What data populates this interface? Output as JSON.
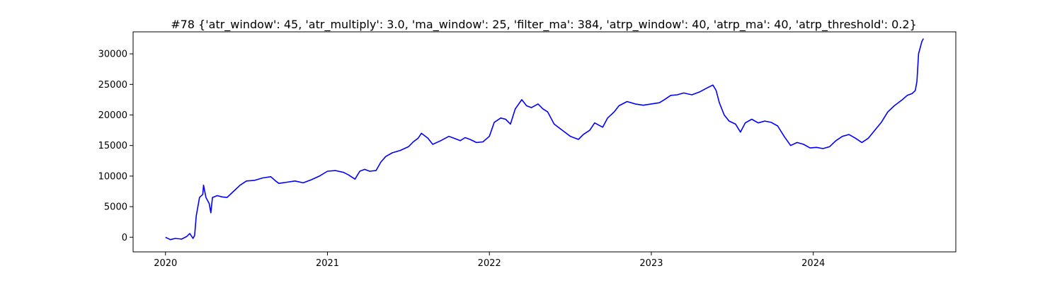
{
  "chart_data": {
    "type": "line",
    "title": "#78 {'atr_window': 45, 'atr_multiply': 3.0, 'ma_window': 25, 'filter_ma': 384, 'atrp_window': 40, 'atrp_ma': 40, 'atrp_threshold': 0.2}",
    "xlabel": "",
    "ylabel": "",
    "xlim": [
      2019.8,
      2024.88
    ],
    "ylim": [
      -2400,
      33600
    ],
    "x_ticks": [
      2020,
      2021,
      2022,
      2023,
      2024
    ],
    "x_tick_labels": [
      "2020",
      "2021",
      "2022",
      "2023",
      "2024"
    ],
    "y_ticks": [
      0,
      5000,
      10000,
      15000,
      20000,
      25000,
      30000
    ],
    "y_tick_labels": [
      "0",
      "5000",
      "10000",
      "15000",
      "20000",
      "25000",
      "30000"
    ],
    "grid": false,
    "legend": "none",
    "series": [
      {
        "color": "#0000ff",
        "points": [
          [
            2020.0,
            0
          ],
          [
            2020.03,
            -400
          ],
          [
            2020.06,
            -200
          ],
          [
            2020.1,
            -300
          ],
          [
            2020.13,
            100
          ],
          [
            2020.15,
            600
          ],
          [
            2020.17,
            -200
          ],
          [
            2020.18,
            300
          ],
          [
            2020.19,
            3500
          ],
          [
            2020.2,
            5000
          ],
          [
            2020.21,
            6500
          ],
          [
            2020.23,
            7000
          ],
          [
            2020.235,
            8500
          ],
          [
            2020.25,
            6500
          ],
          [
            2020.27,
            5500
          ],
          [
            2020.28,
            4000
          ],
          [
            2020.29,
            6500
          ],
          [
            2020.32,
            6800
          ],
          [
            2020.35,
            6600
          ],
          [
            2020.38,
            6500
          ],
          [
            2020.42,
            7500
          ],
          [
            2020.46,
            8500
          ],
          [
            2020.5,
            9200
          ],
          [
            2020.55,
            9300
          ],
          [
            2020.6,
            9700
          ],
          [
            2020.65,
            9900
          ],
          [
            2020.68,
            9200
          ],
          [
            2020.7,
            8800
          ],
          [
            2020.75,
            9000
          ],
          [
            2020.8,
            9200
          ],
          [
            2020.85,
            8900
          ],
          [
            2020.9,
            9400
          ],
          [
            2020.95,
            10000
          ],
          [
            2021.0,
            10800
          ],
          [
            2021.05,
            10900
          ],
          [
            2021.1,
            10600
          ],
          [
            2021.13,
            10200
          ],
          [
            2021.17,
            9500
          ],
          [
            2021.2,
            10800
          ],
          [
            2021.23,
            11100
          ],
          [
            2021.26,
            10800
          ],
          [
            2021.3,
            10900
          ],
          [
            2021.33,
            12300
          ],
          [
            2021.36,
            13200
          ],
          [
            2021.4,
            13800
          ],
          [
            2021.45,
            14200
          ],
          [
            2021.5,
            14800
          ],
          [
            2021.53,
            15600
          ],
          [
            2021.56,
            16200
          ],
          [
            2021.58,
            17000
          ],
          [
            2021.62,
            16200
          ],
          [
            2021.65,
            15200
          ],
          [
            2021.7,
            15800
          ],
          [
            2021.75,
            16500
          ],
          [
            2021.78,
            16200
          ],
          [
            2021.82,
            15800
          ],
          [
            2021.85,
            16300
          ],
          [
            2021.88,
            16000
          ],
          [
            2021.92,
            15500
          ],
          [
            2021.96,
            15600
          ],
          [
            2022.0,
            16500
          ],
          [
            2022.03,
            18800
          ],
          [
            2022.07,
            19500
          ],
          [
            2022.1,
            19300
          ],
          [
            2022.13,
            18500
          ],
          [
            2022.16,
            21000
          ],
          [
            2022.2,
            22500
          ],
          [
            2022.23,
            21500
          ],
          [
            2022.26,
            21200
          ],
          [
            2022.3,
            21800
          ],
          [
            2022.33,
            21000
          ],
          [
            2022.36,
            20500
          ],
          [
            2022.4,
            18500
          ],
          [
            2022.45,
            17500
          ],
          [
            2022.5,
            16500
          ],
          [
            2022.55,
            16000
          ],
          [
            2022.58,
            16800
          ],
          [
            2022.62,
            17500
          ],
          [
            2022.65,
            18700
          ],
          [
            2022.7,
            18000
          ],
          [
            2022.73,
            19500
          ],
          [
            2022.77,
            20500
          ],
          [
            2022.8,
            21500
          ],
          [
            2022.85,
            22200
          ],
          [
            2022.9,
            21800
          ],
          [
            2022.95,
            21600
          ],
          [
            2023.0,
            21800
          ],
          [
            2023.05,
            22000
          ],
          [
            2023.08,
            22500
          ],
          [
            2023.12,
            23200
          ],
          [
            2023.16,
            23300
          ],
          [
            2023.2,
            23600
          ],
          [
            2023.25,
            23300
          ],
          [
            2023.3,
            23800
          ],
          [
            2023.35,
            24500
          ],
          [
            2023.38,
            24900
          ],
          [
            2023.4,
            24000
          ],
          [
            2023.42,
            22000
          ],
          [
            2023.45,
            20000
          ],
          [
            2023.48,
            19000
          ],
          [
            2023.52,
            18500
          ],
          [
            2023.55,
            17200
          ],
          [
            2023.58,
            18700
          ],
          [
            2023.62,
            19300
          ],
          [
            2023.66,
            18700
          ],
          [
            2023.7,
            19000
          ],
          [
            2023.74,
            18800
          ],
          [
            2023.78,
            18200
          ],
          [
            2023.82,
            16500
          ],
          [
            2023.86,
            15000
          ],
          [
            2023.9,
            15500
          ],
          [
            2023.94,
            15200
          ],
          [
            2023.98,
            14600
          ],
          [
            2024.02,
            14700
          ],
          [
            2024.06,
            14500
          ],
          [
            2024.1,
            14800
          ],
          [
            2024.14,
            15800
          ],
          [
            2024.18,
            16500
          ],
          [
            2024.22,
            16800
          ],
          [
            2024.26,
            16200
          ],
          [
            2024.3,
            15500
          ],
          [
            2024.34,
            16200
          ],
          [
            2024.38,
            17500
          ],
          [
            2024.42,
            18800
          ],
          [
            2024.46,
            20500
          ],
          [
            2024.5,
            21500
          ],
          [
            2024.55,
            22500
          ],
          [
            2024.58,
            23200
          ],
          [
            2024.61,
            23500
          ],
          [
            2024.63,
            24000
          ],
          [
            2024.64,
            25500
          ],
          [
            2024.65,
            30000
          ],
          [
            2024.66,
            31000
          ],
          [
            2024.67,
            32000
          ],
          [
            2024.68,
            32500
          ]
        ]
      }
    ]
  }
}
